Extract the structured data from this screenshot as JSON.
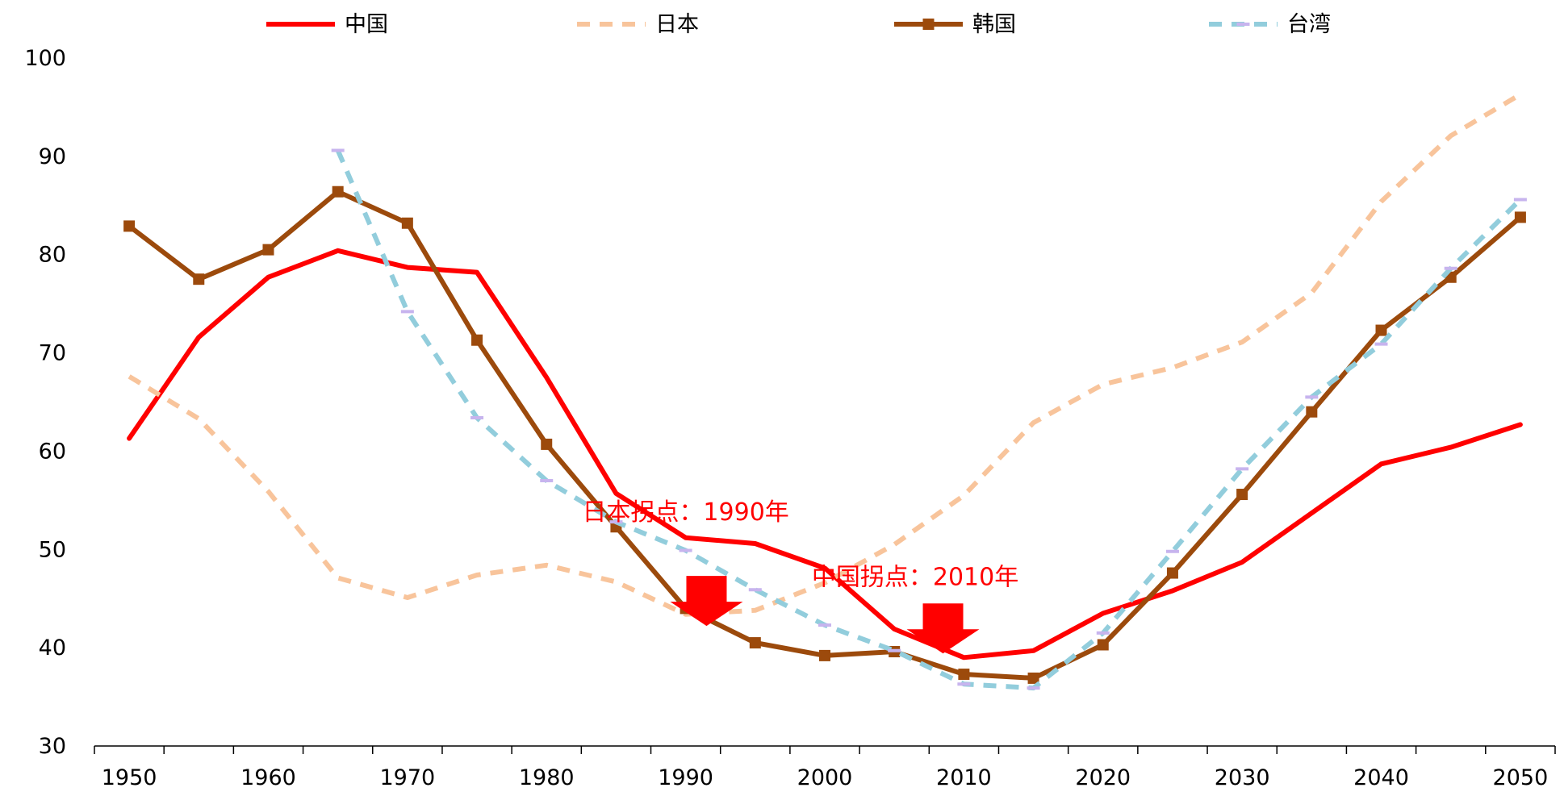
{
  "chart_data": {
    "type": "line",
    "title": "",
    "xlabel": "",
    "ylabel": "",
    "xlim": [
      1947.5,
      2052.5
    ],
    "ylim": [
      30,
      100
    ],
    "xticks": [
      1950,
      1960,
      1970,
      1980,
      1990,
      2000,
      2010,
      2020,
      2030,
      2040,
      2050
    ],
    "yticks": [
      30,
      40,
      50,
      60,
      70,
      80,
      90,
      100
    ],
    "grid": false,
    "legend_position": "top",
    "series": [
      {
        "name": "中国",
        "color": "#ff0000",
        "style": "solid",
        "marker": "none",
        "x": [
          1950,
          1955,
          1960,
          1965,
          1970,
          1975,
          1980,
          1985,
          1990,
          1995,
          2000,
          2005,
          2010,
          2015,
          2020,
          2025,
          2030,
          2035,
          2040,
          2045,
          2050
        ],
        "y": [
          61.3,
          71.6,
          77.7,
          80.4,
          78.7,
          78.2,
          67.5,
          55.7,
          51.2,
          50.6,
          48.1,
          41.9,
          39.0,
          39.7,
          43.5,
          45.8,
          48.7,
          53.7,
          58.7,
          60.4,
          62.7
        ]
      },
      {
        "name": "日本",
        "color": "#f8c49b",
        "style": "dashed",
        "marker": "none",
        "x": [
          1950,
          1955,
          1960,
          1965,
          1970,
          1975,
          1980,
          1985,
          1990,
          1995,
          2000,
          2005,
          2010,
          2015,
          2020,
          2025,
          2030,
          2035,
          2040,
          2045,
          2050
        ],
        "y": [
          67.6,
          63.3,
          55.9,
          47.1,
          45.1,
          47.4,
          48.4,
          46.7,
          43.4,
          43.8,
          46.6,
          50.5,
          55.5,
          62.9,
          66.8,
          68.5,
          71.1,
          76.1,
          85.4,
          92.1,
          96.3
        ]
      },
      {
        "name": "韩国",
        "color": "#9c4a0c",
        "style": "solid",
        "marker": "square",
        "x": [
          1950,
          1955,
          1960,
          1965,
          1970,
          1975,
          1980,
          1985,
          1990,
          1995,
          2000,
          2005,
          2010,
          2015,
          2020,
          2025,
          2030,
          2035,
          2040,
          2045,
          2050
        ],
        "y": [
          82.9,
          77.5,
          80.5,
          86.4,
          83.2,
          71.3,
          60.7,
          52.3,
          44.0,
          40.5,
          39.2,
          39.6,
          37.3,
          36.9,
          40.3,
          47.6,
          55.6,
          64.0,
          72.3,
          77.7,
          83.8
        ]
      },
      {
        "name": "台湾",
        "color": "#92cddc",
        "style": "dashed",
        "marker": "dash",
        "x": [
          1965,
          1970,
          1975,
          1980,
          1985,
          1990,
          1995,
          2000,
          2005,
          2010,
          2015,
          2020,
          2025,
          2030,
          2035,
          2040,
          2045,
          2050
        ],
        "y": [
          90.6,
          74.2,
          63.4,
          57.0,
          52.8,
          49.9,
          45.9,
          42.3,
          39.7,
          36.3,
          35.9,
          41.5,
          49.8,
          58.2,
          65.5,
          70.9,
          78.6,
          85.6
        ]
      }
    ],
    "annotations": [
      {
        "text": "日本拐点：1990年",
        "color": "#ff0000",
        "arrow_x": 1991.5,
        "arrow_y": 47.3,
        "text_x": 1990,
        "text_y": 53.8
      },
      {
        "text": "中国拐点：2010年",
        "color": "#ff0000",
        "arrow_x": 2008.5,
        "arrow_y": 44.5,
        "text_x": 2006.5,
        "text_y": 47.2
      }
    ]
  }
}
